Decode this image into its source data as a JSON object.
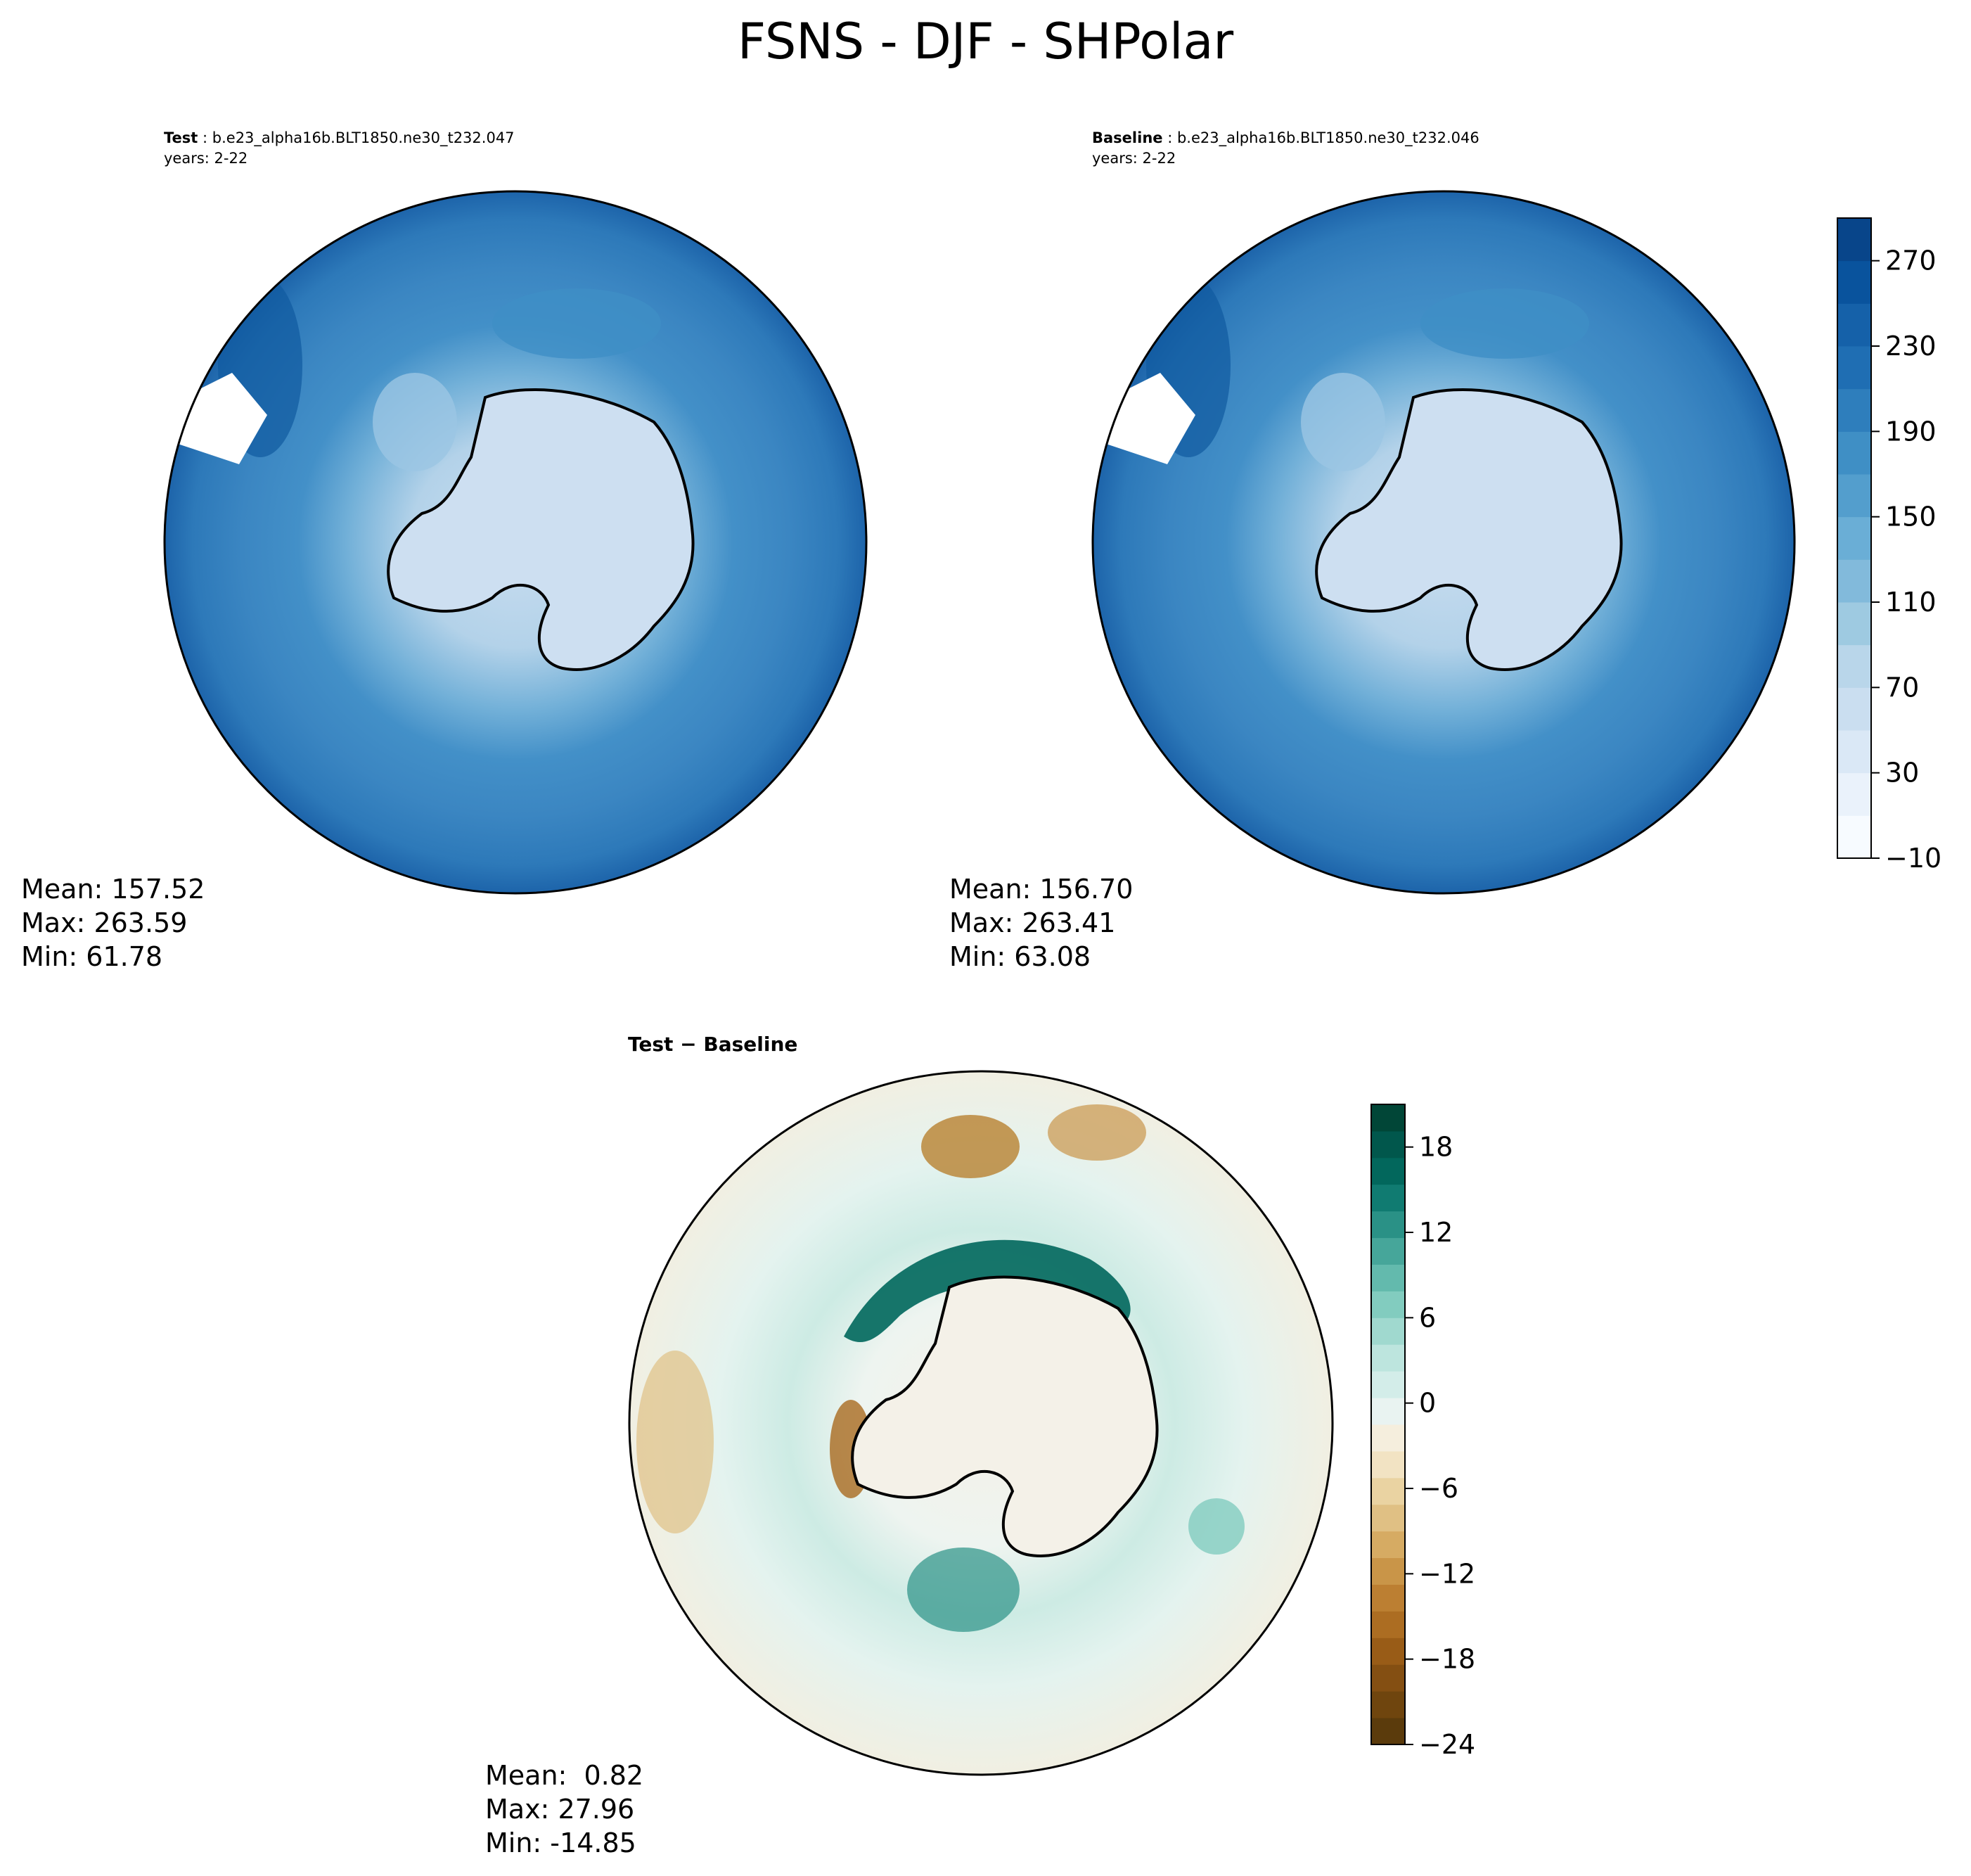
{
  "chart_data": [
    {
      "type": "heatmap",
      "projection": "south-polar-stereographic",
      "title": "Test",
      "run": "b.e23_alpha16b.BLT1850.ne30_t232.047",
      "years": "years: 2-22",
      "stats": {
        "mean": "Mean: 157.52",
        "max": "Max: 263.59",
        "min": "Min: 61.78"
      }
    },
    {
      "type": "heatmap",
      "projection": "south-polar-stereographic",
      "title": "Baseline",
      "run": "b.e23_alpha16b.BLT1850.ne30_t232.046",
      "years": "years: 2-22",
      "stats": {
        "mean": "Mean: 156.70",
        "max": "Max: 263.41",
        "min": "Min: 63.08"
      },
      "colorbar": {
        "min": -10,
        "max": 290,
        "ticks": [
          -10,
          30,
          70,
          110,
          150,
          190,
          230,
          270
        ],
        "colors": [
          "#f7fbff",
          "#eaf2fb",
          "#dae8f6",
          "#cadef0",
          "#b9d6ea",
          "#9ecae1",
          "#82badb",
          "#6aaed6",
          "#539ecd",
          "#3f8fc5",
          "#2e7ebc",
          "#1f6eb3",
          "#1561a9",
          "#09539d",
          "#08458a"
        ]
      }
    },
    {
      "type": "heatmap",
      "projection": "south-polar-stereographic",
      "title": "Test − Baseline",
      "stats": {
        "mean": "Mean:  0.82",
        "max": "Max: 27.96",
        "min": "Min: -14.85"
      },
      "colorbar": {
        "min": -24,
        "max": 21,
        "ticks": [
          -24,
          -18,
          -12,
          -6,
          0,
          6,
          12,
          18
        ],
        "colors": [
          "#5b3b0c",
          "#6f450e",
          "#844f12",
          "#995c17",
          "#ac6d22",
          "#bc7f32",
          "#c99548",
          "#d6ab63",
          "#e0c084",
          "#ead3a2",
          "#f2e3c3",
          "#f5eedd",
          "#e9f3f1",
          "#d3ede9",
          "#bde5de",
          "#a0d9cf",
          "#82ccbf",
          "#63baad",
          "#46a69a",
          "#2a9186",
          "#107b71",
          "#02675c",
          "#01574c",
          "#014637"
        ]
      }
    }
  ],
  "figure": {
    "title": "FSNS - DJF - SHPolar",
    "test_label": "Test",
    "baseline_label": "Baseline",
    "diff_label": "Test − Baseline"
  }
}
